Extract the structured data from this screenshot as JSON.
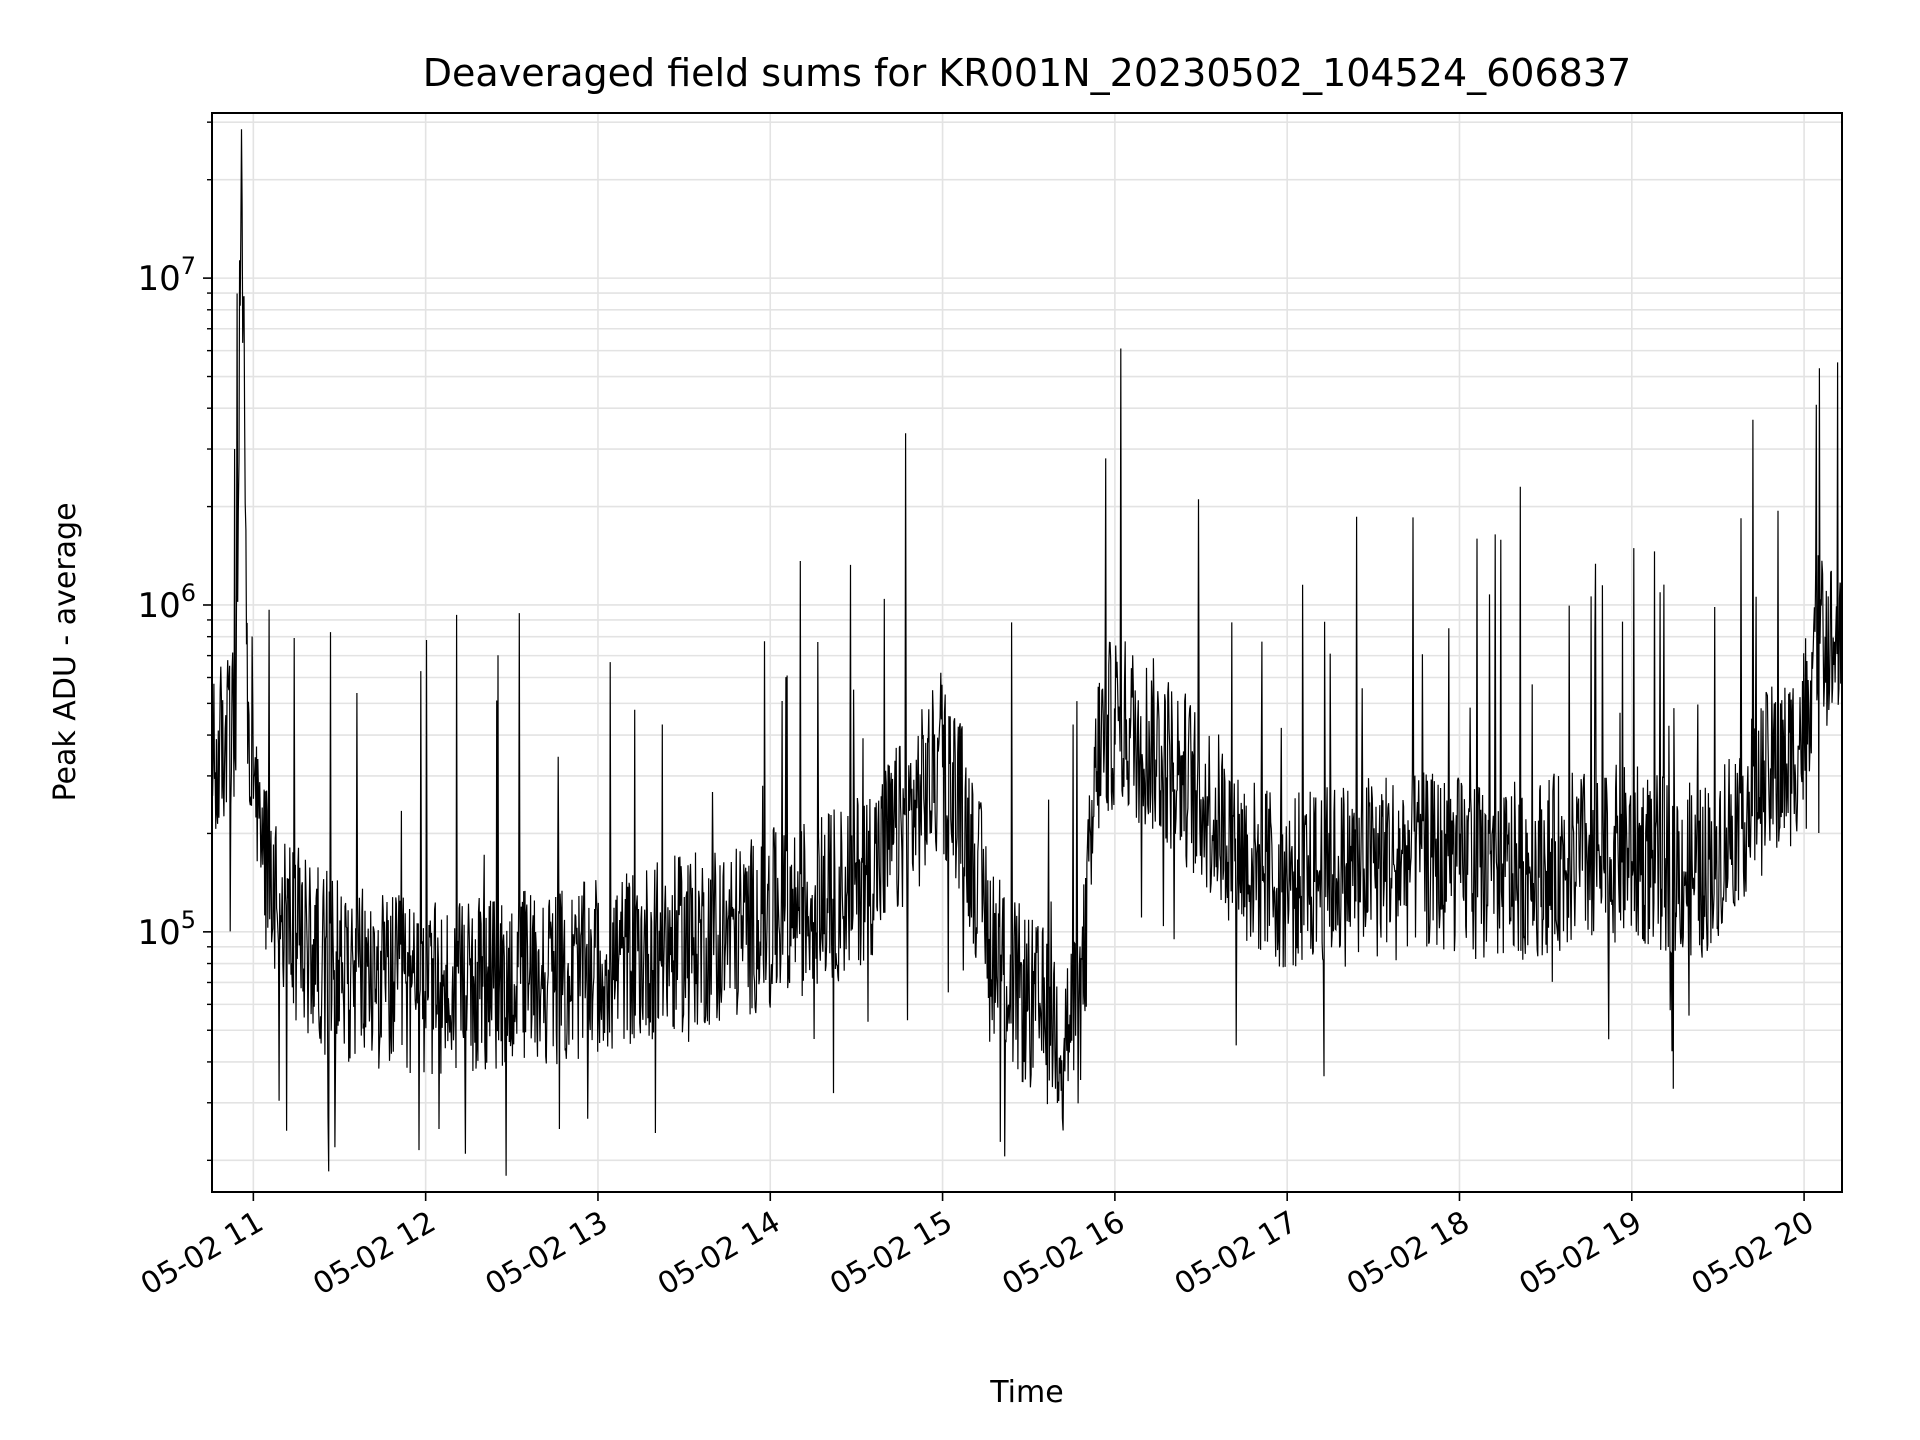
{
  "chart_data": {
    "type": "line",
    "title": "Deaveraged field sums for KR001N_20230502_104524_606837",
    "xlabel": "Time",
    "ylabel": "Peak ADU - average",
    "yscale": "log",
    "ylim": [
      16000,
      32000000
    ],
    "xlim_hours": [
      10.76,
      20.22
    ],
    "y_tick_values": [
      100000,
      1000000,
      10000000
    ],
    "y_tick_labels": [
      {
        "base": "10",
        "exp": "5"
      },
      {
        "base": "10",
        "exp": "6"
      },
      {
        "base": "10",
        "exp": "7"
      }
    ],
    "x_tick_hours": [
      11,
      12,
      13,
      14,
      15,
      16,
      17,
      18,
      19,
      20
    ],
    "x_tick_labels": [
      "05-02 11",
      "05-02 12",
      "05-02 13",
      "05-02 14",
      "05-02 15",
      "05-02 16",
      "05-02 17",
      "05-02 18",
      "05-02 19",
      "05-02 20"
    ],
    "grid": true,
    "line_color": "#000000",
    "grid_color": "#e3e3e3",
    "series": [
      {
        "x_hours": [
          10.76,
          10.8,
          10.85,
          10.9,
          10.93,
          10.95,
          10.97,
          11.0,
          11.05,
          11.1,
          11.15,
          11.2,
          11.25,
          11.3,
          11.4,
          11.5,
          11.6,
          11.7,
          11.8,
          11.9,
          12.0,
          12.2,
          12.4,
          12.6,
          12.8,
          13.0,
          13.2,
          13.4,
          13.6,
          13.8,
          14.0,
          14.2,
          14.4,
          14.6,
          14.8,
          14.95,
          15.0,
          15.1,
          15.2,
          15.3,
          15.4,
          15.5,
          15.6,
          15.7,
          15.8,
          15.9,
          16.0,
          16.2,
          16.4,
          16.6,
          16.8,
          17.0,
          17.2,
          17.4,
          17.6,
          17.8,
          18.0,
          18.2,
          18.4,
          18.6,
          18.8,
          19.0,
          19.2,
          19.4,
          19.6,
          19.8,
          19.9,
          20.0,
          20.05,
          20.1,
          20.15,
          20.22
        ],
        "y": [
          300000,
          350000,
          400000,
          450000,
          22000000,
          3600000,
          350000,
          250000,
          180000,
          150000,
          130000,
          110000,
          100000,
          90000,
          85000,
          80000,
          75000,
          72000,
          70000,
          68000,
          66000,
          65000,
          70000,
          75000,
          72000,
          78000,
          85000,
          90000,
          95000,
          100000,
          110000,
          120000,
          130000,
          160000,
          220000,
          300000,
          320000,
          250000,
          150000,
          90000,
          70000,
          60000,
          55000,
          50000,
          55000,
          350000,
          450000,
          380000,
          300000,
          220000,
          160000,
          140000,
          150000,
          160000,
          170000,
          165000,
          160000,
          150000,
          155000,
          165000,
          170000,
          175000,
          160000,
          150000,
          220000,
          300000,
          320000,
          420000,
          700000,
          800000,
          760000,
          700000
        ]
      }
    ]
  }
}
